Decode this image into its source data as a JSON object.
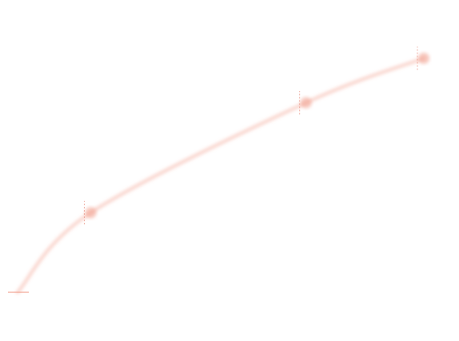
{
  "chart_data": {
    "type": "line",
    "x": [
      0,
      18,
      71,
      100
    ],
    "series": [
      {
        "color": "#f19a88",
        "values": [
          0,
          34,
          81,
          100
        ],
        "errors": [
          0,
          5,
          5,
          5
        ]
      }
    ],
    "xlim": [
      0,
      100
    ],
    "ylim": [
      0,
      100
    ]
  }
}
